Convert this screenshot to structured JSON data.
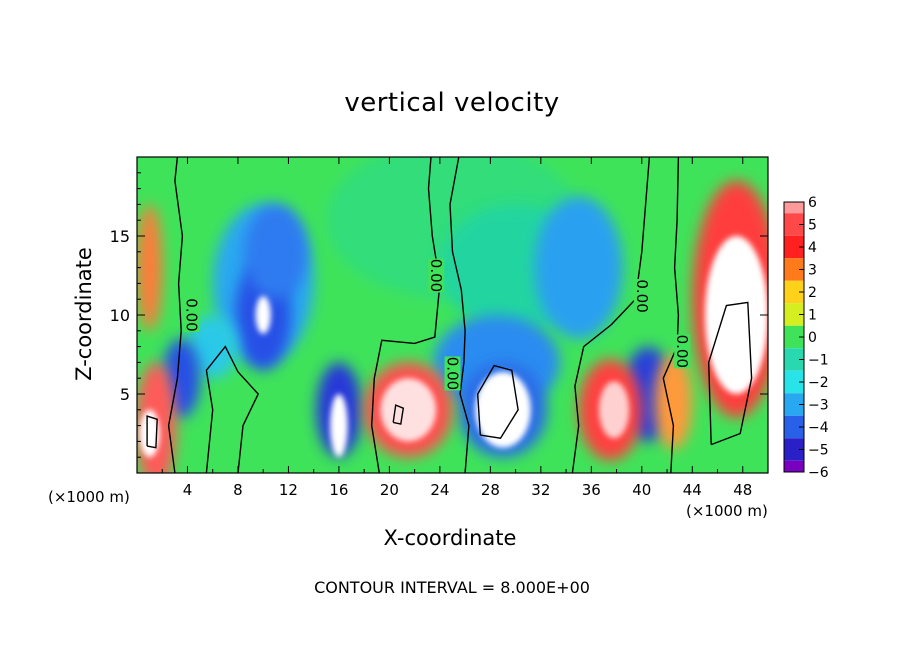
{
  "chart_data": {
    "type": "heatmap",
    "title": "vertical velocity",
    "xlabel": "X-coordinate",
    "ylabel": "Z-coordinate",
    "x_units": "(×1000 m)",
    "y_units": "(×1000 m)",
    "xlim": [
      0,
      50
    ],
    "ylim": [
      0,
      20
    ],
    "x_ticks": [
      "4",
      "8",
      "12",
      "16",
      "20",
      "24",
      "28",
      "32",
      "36",
      "40",
      "44",
      "48"
    ],
    "y_ticks": [
      "5",
      "10",
      "15"
    ],
    "colorbar": {
      "range": [
        -6,
        6
      ],
      "tick_labels": [
        "6",
        "5",
        "4",
        "3",
        "2",
        "1",
        "0",
        "−1",
        "−2",
        "−3",
        "−4",
        "−5",
        "−6"
      ]
    },
    "contour_labels": [
      "0.00",
      "0.00",
      "0.00",
      "0.00",
      "0.00"
    ],
    "contour_interval": "CONTOUR INTERVAL = 8.000E+00"
  }
}
